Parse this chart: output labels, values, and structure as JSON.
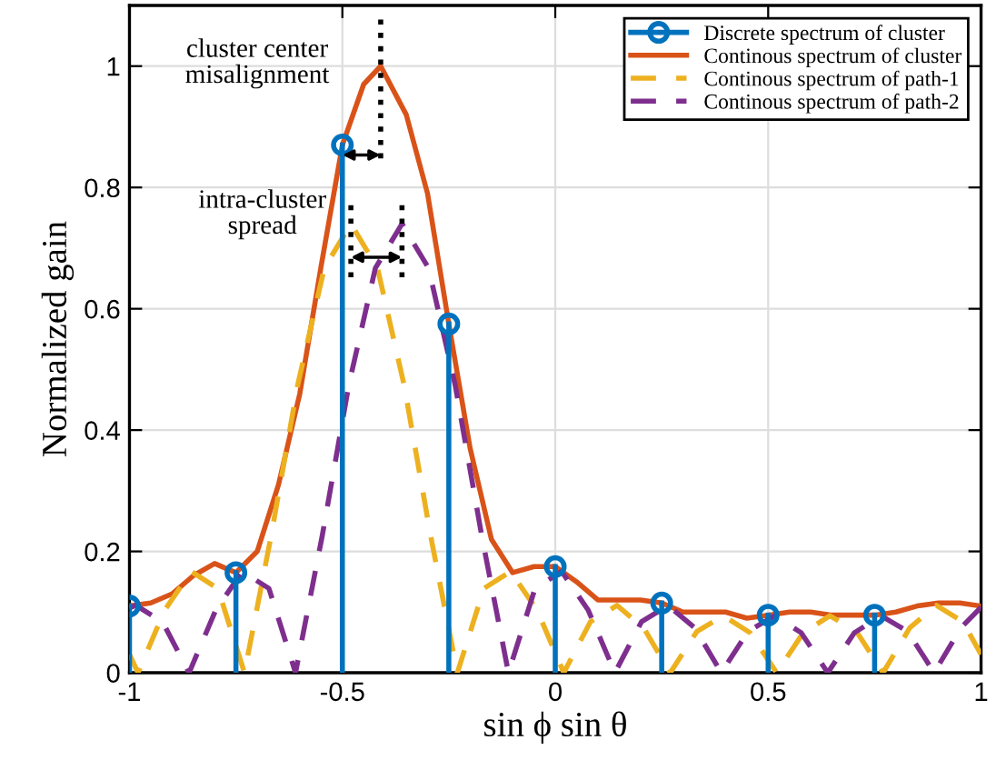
{
  "chart_data": {
    "type": "line",
    "xlabel": "sin ϕ sin θ",
    "ylabel": "Normalized gain",
    "xlim": [
      -1,
      1
    ],
    "ylim": [
      0,
      1.1
    ],
    "xticks": [
      -1,
      -0.5,
      0,
      0.5,
      1
    ],
    "yticks": [
      0,
      0.2,
      0.4,
      0.6,
      0.8,
      1
    ],
    "grid": true,
    "legend": "top right",
    "annotations": [
      "cluster center\nmisalignment",
      "intra-cluster\nspread"
    ],
    "series": [
      {
        "name": "Discrete spectrum of cluster",
        "type": "lollipop",
        "color": "#0072bd",
        "marker": "circle",
        "x": [
          -1,
          -0.75,
          -0.5,
          -0.25,
          0,
          0.25,
          0.5,
          0.75
        ],
        "values": [
          0.11,
          0.165,
          0.87,
          0.575,
          0.175,
          0.115,
          0.095,
          0.095
        ]
      },
      {
        "name": "Continous spectrum of cluster",
        "color": "#d95319",
        "line_style": "solid",
        "x": [
          -1,
          -0.95,
          -0.9,
          -0.85,
          -0.8,
          -0.75,
          -0.7,
          -0.65,
          -0.6,
          -0.55,
          -0.5,
          -0.45,
          -0.41,
          -0.35,
          -0.3,
          -0.25,
          -0.2,
          -0.15,
          -0.1,
          -0.05,
          0,
          0.05,
          0.1,
          0.15,
          0.2,
          0.25,
          0.3,
          0.35,
          0.4,
          0.45,
          0.5,
          0.55,
          0.6,
          0.65,
          0.7,
          0.75,
          0.8,
          0.85,
          0.9,
          0.95,
          1
        ],
        "values": [
          0.11,
          0.115,
          0.13,
          0.16,
          0.18,
          0.165,
          0.2,
          0.31,
          0.46,
          0.67,
          0.87,
          0.97,
          1.0,
          0.92,
          0.79,
          0.575,
          0.37,
          0.22,
          0.165,
          0.175,
          0.175,
          0.15,
          0.12,
          0.12,
          0.12,
          0.115,
          0.1,
          0.1,
          0.1,
          0.09,
          0.095,
          0.1,
          0.1,
          0.095,
          0.095,
          0.095,
          0.1,
          0.11,
          0.115,
          0.115,
          0.11
        ]
      },
      {
        "name": "Continous spectrum of path-1",
        "color": "#edb120",
        "line_style": "dashed",
        "x": [
          -1,
          -0.98,
          -0.9175,
          -0.855,
          -0.7925,
          -0.73,
          -0.6675,
          -0.605,
          -0.5425,
          -0.48,
          -0.4175,
          -0.355,
          -0.2925,
          -0.23,
          -0.1675,
          -0.105,
          -0.0425,
          0.02,
          0.0825,
          0.145,
          0.2075,
          0.27,
          0.3325,
          0.395,
          0.4575,
          0.52,
          0.5825,
          0.645,
          0.7075,
          0.77,
          0.8325,
          0.895,
          0.9575,
          1
        ],
        "values": [
          0.03,
          0,
          0.103,
          0.167,
          0.139,
          0,
          0.225,
          0.474,
          0.667,
          0.74,
          0.667,
          0.474,
          0.225,
          0,
          0.139,
          0.167,
          0.103,
          0,
          0.084,
          0.111,
          0.074,
          0,
          0.068,
          0.094,
          0.066,
          0,
          0.066,
          0.094,
          0.068,
          0,
          0.074,
          0.111,
          0.084,
          0.03
        ]
      },
      {
        "name": "Continous spectrum of path-2",
        "color": "#7e2f8e",
        "line_style": "dashed",
        "x": [
          -1,
          -0.985,
          -0.9225,
          -0.86,
          -0.7975,
          -0.735,
          -0.6725,
          -0.61,
          -0.5475,
          -0.485,
          -0.4225,
          -0.36,
          -0.2975,
          -0.235,
          -0.1725,
          -0.11,
          -0.0475,
          0.015,
          0.0775,
          0.14,
          0.2025,
          0.265,
          0.3275,
          0.39,
          0.4525,
          0.515,
          0.5775,
          0.64,
          0.7025,
          0.765,
          0.8275,
          0.89,
          0.9525,
          1
        ],
        "values": [
          0.107,
          0.111,
          0.084,
          0,
          0.103,
          0.167,
          0.139,
          0,
          0.225,
          0.474,
          0.667,
          0.74,
          0.667,
          0.474,
          0.225,
          0,
          0.139,
          0.167,
          0.103,
          0,
          0.084,
          0.111,
          0.074,
          0,
          0.068,
          0.094,
          0.066,
          0,
          0.066,
          0.094,
          0.068,
          0,
          0.074,
          0.108
        ]
      }
    ]
  }
}
